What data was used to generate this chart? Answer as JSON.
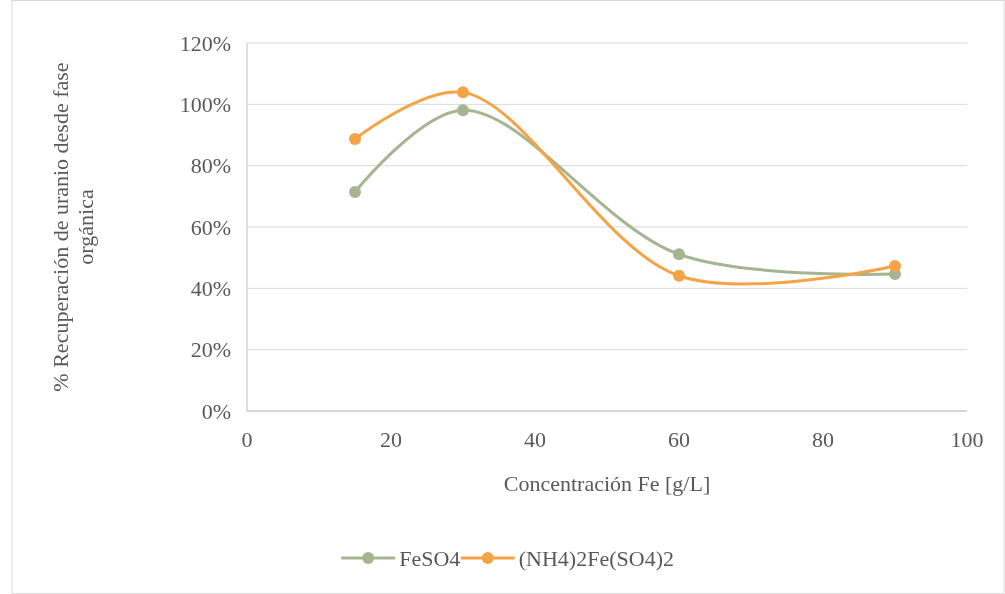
{
  "chart_data": {
    "type": "line",
    "xlabel": "Concentración Fe [g/L]",
    "ylabel": "% Recuperación de uranio desde fase orgánica",
    "x": [
      15,
      30,
      60,
      90
    ],
    "series": [
      {
        "name": "FeSO4",
        "color": "#a5b592",
        "values": [
          71.4,
          98.1,
          51.1,
          44.7
        ]
      },
      {
        "name": "(NH4)2Fe(SO4)2",
        "color": "#f4a444",
        "values": [
          88.7,
          103.9,
          44.1,
          47.3
        ]
      }
    ],
    "xlim": [
      0,
      100
    ],
    "xticks": [
      0,
      20,
      40,
      60,
      80,
      100
    ],
    "ylim": [
      0,
      120
    ],
    "yticks": [
      {
        "value": 0,
        "label": "0%"
      },
      {
        "value": 20,
        "label": "20%"
      },
      {
        "value": 40,
        "label": "40%"
      },
      {
        "value": 60,
        "label": "60%"
      },
      {
        "value": 80,
        "label": "80%"
      },
      {
        "value": 100,
        "label": "100%"
      },
      {
        "value": 120,
        "label": "120%"
      }
    ],
    "grid": "y",
    "legend": "bottom",
    "marker": "circle",
    "line_style": "solid"
  }
}
